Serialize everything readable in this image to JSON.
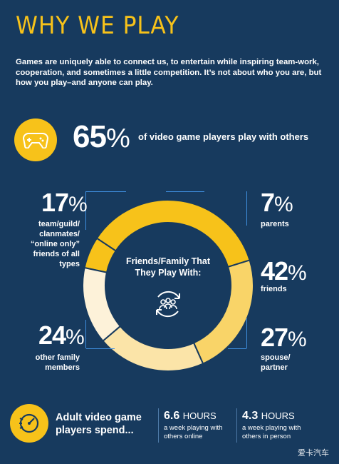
{
  "title": "WHY WE PLAY",
  "intro": "Games are uniquely able to connect us, to entertain while inspiring team-work, cooperation, and sometimes a little competition. It’s not about who you are, but how you play–and anyone can play.",
  "headline": {
    "number": "65",
    "unit": "%",
    "text": "of video game players play with others",
    "icon": "gamepad-icon"
  },
  "donut_center": {
    "text": "Friends/Family That They Play With:",
    "icon": "group-cycle-icon"
  },
  "stats": {
    "parents": {
      "number": "7",
      "unit": "%",
      "label": "parents"
    },
    "friends": {
      "number": "42",
      "unit": "%",
      "label": "friends"
    },
    "spouse": {
      "number": "27",
      "unit": "%",
      "label": "spouse/ partner"
    },
    "other_family": {
      "number": "24",
      "unit": "%",
      "label": "other family members"
    },
    "team": {
      "number": "17",
      "unit": "%",
      "label": "team/guild/ clanmates/ “online only” friends of all types"
    }
  },
  "spend": {
    "text": "Adult video game players spend...",
    "icon": "clock-speed-icon",
    "online": {
      "number": "6.6",
      "unit": "HOURS",
      "note": "a week playing with others online"
    },
    "in_person": {
      "number": "4.3",
      "unit": "HOURS",
      "note": "a week playing with others in person"
    }
  },
  "watermark": "爱卡汽车",
  "colors": {
    "background": "#173a5e",
    "accent": "#f7c21a",
    "bracket": "#3f8fe0"
  },
  "chart_data": {
    "type": "pie",
    "variant": "donut",
    "title": "Friends/Family That They Play With:",
    "categories": [
      "parents",
      "friends",
      "spouse/partner",
      "other family members",
      "team/guild/clanmates/“online only” friends of all types"
    ],
    "values": [
      7,
      42,
      27,
      24,
      17
    ],
    "colors": [
      "#f7c21a",
      "#f7c21a",
      "#f9d468",
      "#fbe4a8",
      "#fdf2d9"
    ],
    "unit": "%"
  }
}
